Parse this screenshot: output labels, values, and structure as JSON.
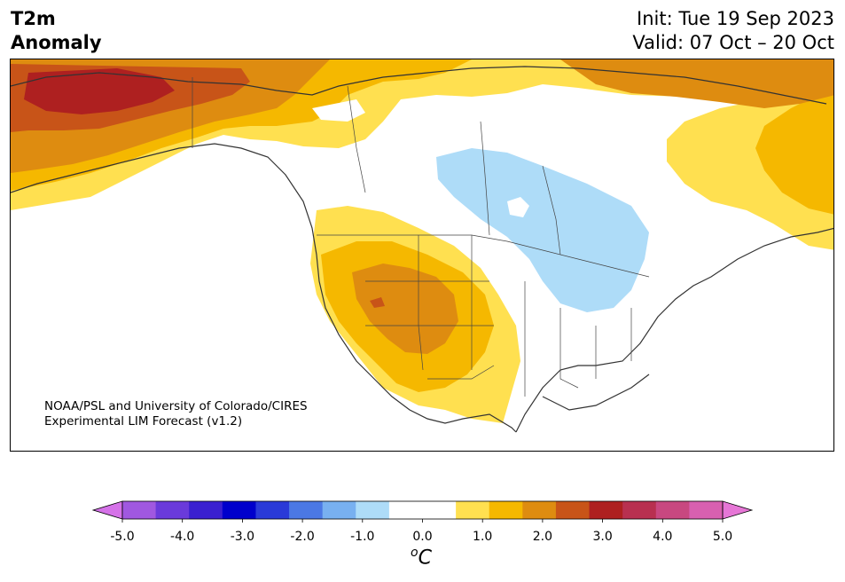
{
  "header": {
    "variable_line1": "T2m",
    "variable_line2": "Anomaly",
    "init": "Init: Tue 19 Sep 2023",
    "valid": "Valid: 07 Oct – 20 Oct"
  },
  "credit": {
    "line1": "NOAA/PSL and University of Colorado/CIRES",
    "line2": "Experimental LIM Forecast (v1.2)"
  },
  "colorbar": {
    "unit_base": "C",
    "unit_sup": "o",
    "tick_labels": [
      "-5.0",
      "-4.0",
      "-3.0",
      "-2.0",
      "-1.0",
      "0.0",
      "1.0",
      "2.0",
      "3.0",
      "4.0",
      "5.0"
    ],
    "colors": [
      "#d572e8",
      "#a058e0",
      "#6a3adb",
      "#3a20d0",
      "#0000cc",
      "#2a3ad8",
      "#4b78e4",
      "#78b0f0",
      "#aedcf8",
      "#ffffff",
      "#ffffff",
      "#ffe050",
      "#f5b800",
      "#de8c10",
      "#c85418",
      "#ae2020",
      "#b83050",
      "#c84880",
      "#d860b0",
      "#e676d6"
    ]
  },
  "map": {
    "region": "North America",
    "shading_colors": {
      "warm1": "#ffe050",
      "warm2": "#f5b800",
      "warm3": "#de8c10",
      "warm4": "#c85418",
      "warm5": "#ae2020",
      "cool1": "#aedcf8"
    }
  }
}
